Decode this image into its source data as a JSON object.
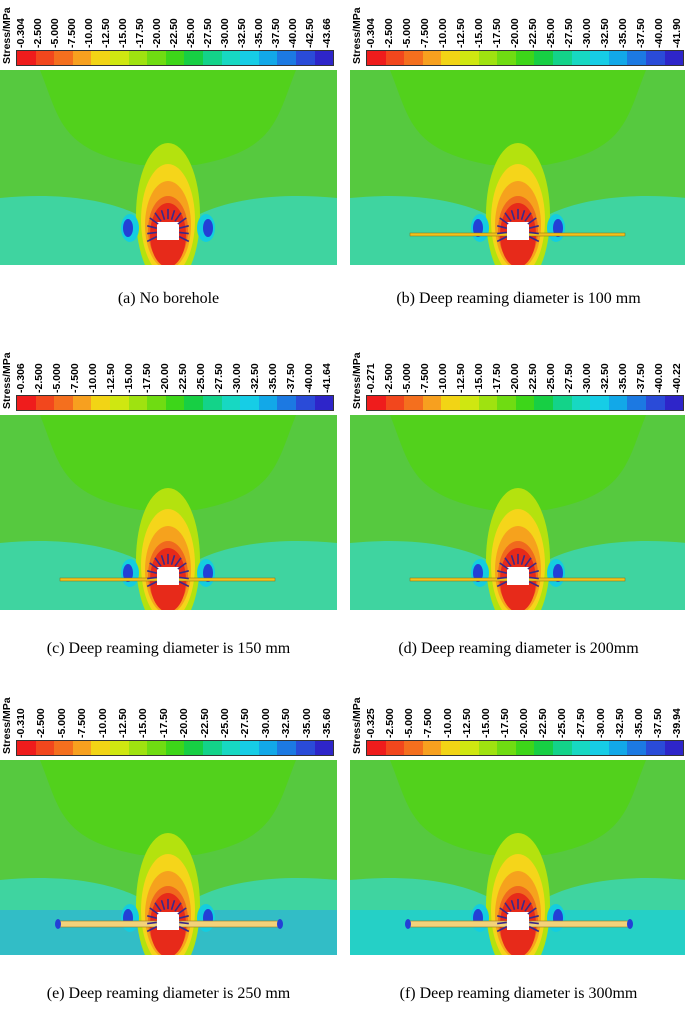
{
  "stress_label": "Stress/MPa",
  "colorbar": [
    "#ef1c1c",
    "#f2471d",
    "#f46f1e",
    "#f7a01f",
    "#f2d415",
    "#cfe711",
    "#9fe210",
    "#6fdc12",
    "#3dd619",
    "#17cf44",
    "#13d389",
    "#17d8c2",
    "#16cde6",
    "#12a8e8",
    "#1c79e2",
    "#2a4bd8",
    "#2e25c9"
  ],
  "field_colors": {
    "bg": "#56c93f",
    "lower": "#3fd4a0",
    "ring1": "#52d11c",
    "ring2": "#b4e20e",
    "ring3": "#f5d51a",
    "ring4": "#f6a21d",
    "ring5": "#f06a1d",
    "core": "#e72a1a",
    "blue": "#2340d6",
    "cyan": "#14cde0"
  },
  "panels": [
    {
      "id": "a",
      "max": "43.66",
      "ticks": [
        "-0.304",
        "-2.500",
        "-5.000",
        "-7.500",
        "-10.00",
        "-12.50",
        "-15.00",
        "-17.50",
        "-20.00",
        "-22.50",
        "-25.00",
        "-27.50",
        "-30.00",
        "-32.50",
        "-35.00",
        "-37.50",
        "-40.00",
        "-42.50",
        "-43.66"
      ],
      "caption": "(a) No borehole",
      "borehole": "none"
    },
    {
      "id": "b",
      "max": "41.90",
      "ticks": [
        "-0.304",
        "-2.500",
        "-5.000",
        "-7.500",
        "-10.00",
        "-12.50",
        "-15.00",
        "-17.50",
        "-20.00",
        "-22.50",
        "-25.00",
        "-27.50",
        "-30.00",
        "-32.50",
        "-35.00",
        "-37.50",
        "-40.00",
        "-41.90"
      ],
      "caption": "(b) Deep reaming diameter is 100 mm",
      "borehole": "thin"
    },
    {
      "id": "c",
      "max": "41.64",
      "ticks": [
        "-0.306",
        "-2.500",
        "-5.000",
        "-7.500",
        "-10.00",
        "-12.50",
        "-15.00",
        "-17.50",
        "-20.00",
        "-22.50",
        "-25.00",
        "-27.50",
        "-30.00",
        "-32.50",
        "-35.00",
        "-37.50",
        "-40.00",
        "-41.64"
      ],
      "caption": "(c) Deep reaming diameter is 150 mm",
      "borehole": "thin"
    },
    {
      "id": "d",
      "max": "40.22",
      "ticks": [
        "-0.271",
        "-2.500",
        "-5.000",
        "-7.500",
        "-10.00",
        "-12.50",
        "-15.00",
        "-17.50",
        "-20.00",
        "-22.50",
        "-25.00",
        "-27.50",
        "-30.00",
        "-32.50",
        "-35.00",
        "-37.50",
        "-40.00",
        "-40.22"
      ],
      "caption": "(d) Deep reaming diameter is 200mm",
      "borehole": "thin"
    },
    {
      "id": "e",
      "max": "35.60",
      "ticks": [
        "-0.310",
        "-2.500",
        "-5.000",
        "-7.500",
        "-10.00",
        "-12.50",
        "-15.00",
        "-17.50",
        "-20.00",
        "-22.50",
        "-25.00",
        "-27.50",
        "-30.00",
        "-32.50",
        "-35.00",
        "-35.60"
      ],
      "caption": "(e) Deep reaming diameter is 250 mm",
      "borehole": "wide"
    },
    {
      "id": "f",
      "max": "39.94",
      "ticks": [
        "-0.325",
        "-2.500",
        "-5.000",
        "-7.500",
        "-10.00",
        "-12.50",
        "-15.00",
        "-17.50",
        "-20.00",
        "-22.50",
        "-25.00",
        "-27.50",
        "-30.00",
        "-32.50",
        "-35.00",
        "-37.50",
        "-39.94"
      ],
      "caption": "(f) Deep reaming diameter is 300mm",
      "borehole": "wide"
    }
  ]
}
